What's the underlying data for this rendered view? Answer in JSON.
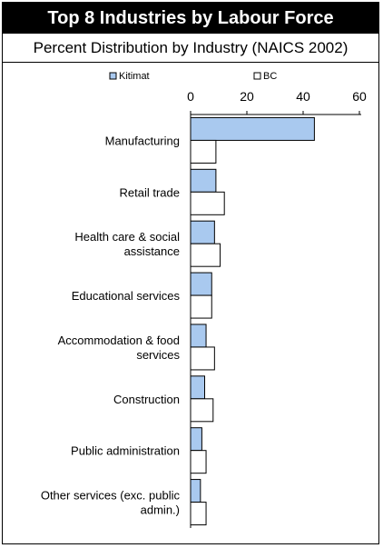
{
  "header": {
    "title": "Top 8 Industries by Labour Force",
    "subtitle": "Percent Distribution by Industry (NAICS 2002)"
  },
  "chart_data": {
    "type": "bar",
    "orientation": "horizontal",
    "categories": [
      "Manufacturing",
      "Retail trade",
      "Health care & social assistance",
      "Educational services",
      "Accommodation & food services",
      "Construction",
      "Public administration",
      "Other services (exc. public admin.)"
    ],
    "category_label_lines": [
      [
        "Manufacturing"
      ],
      [
        "Retail trade"
      ],
      [
        "Health care & social",
        "assistance"
      ],
      [
        "Educational services"
      ],
      [
        "Accommodation & food",
        "services"
      ],
      [
        "Construction"
      ],
      [
        "Public administration"
      ],
      [
        "Other services (exc. public",
        "admin.)"
      ]
    ],
    "series": [
      {
        "name": "Kitimat",
        "color": "#a9c9ef",
        "values": [
          44,
          9,
          8.5,
          7.5,
          5.5,
          5,
          4,
          3.5
        ]
      },
      {
        "name": "BC",
        "color": "#ffffff",
        "values": [
          9,
          12,
          10.5,
          7.5,
          8.5,
          8,
          5.5,
          5.5
        ]
      }
    ],
    "xlim": [
      0,
      60
    ],
    "xticks": [
      "0",
      "20",
      "40",
      "60"
    ],
    "tick_values": [
      0,
      20,
      40,
      60
    ],
    "x_axis_position": "top",
    "grid": false,
    "legend_position": "top"
  }
}
